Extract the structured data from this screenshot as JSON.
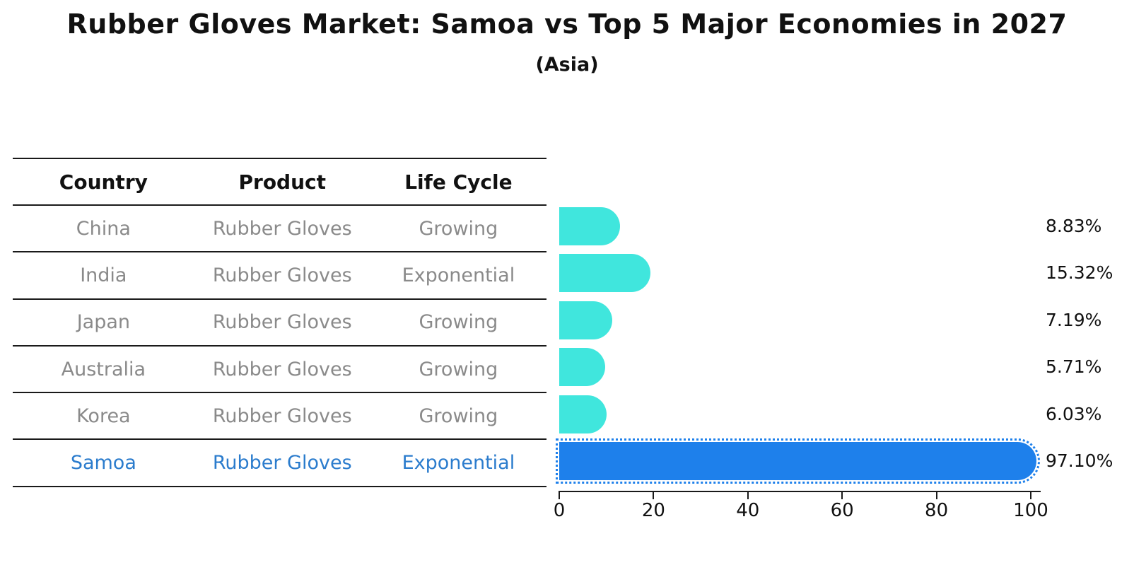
{
  "title": "Rubber Gloves Market: Samoa vs Top 5 Major Economies in 2027",
  "subtitle": "(Asia)",
  "table": {
    "headers": [
      "Country",
      "Product",
      "Life Cycle"
    ],
    "rows": [
      {
        "country": "China",
        "product": "Rubber Gloves",
        "life_cycle": "Growing",
        "highlight": false
      },
      {
        "country": "India",
        "product": "Rubber Gloves",
        "life_cycle": "Exponential",
        "highlight": false
      },
      {
        "country": "Japan",
        "product": "Rubber Gloves",
        "life_cycle": "Growing",
        "highlight": false
      },
      {
        "country": "Australia",
        "product": "Rubber Gloves",
        "life_cycle": "Growing",
        "highlight": false
      },
      {
        "country": "Korea",
        "product": "Rubber Gloves",
        "life_cycle": "Growing",
        "highlight": false
      },
      {
        "country": "Samoa",
        "product": "Rubber Gloves",
        "life_cycle": "Exponential",
        "highlight": true
      }
    ]
  },
  "chart_data": {
    "type": "bar",
    "orientation": "horizontal",
    "title": "Rubber Gloves Market: Samoa vs Top 5 Major Economies in 2027",
    "subtitle": "(Asia)",
    "categories": [
      "China",
      "India",
      "Japan",
      "Australia",
      "Korea",
      "Samoa"
    ],
    "values": [
      8.83,
      15.32,
      7.19,
      5.71,
      6.03,
      97.1
    ],
    "value_labels": [
      "8.83%",
      "15.32%",
      "7.19%",
      "5.71%",
      "6.03%",
      "97.10%"
    ],
    "highlight_index": 5,
    "x_ticks": [
      0,
      20,
      40,
      60,
      80,
      100
    ],
    "xlim": [
      0,
      100
    ],
    "grid": false,
    "legend": "none",
    "colors": {
      "default_bar": "#40e6dd",
      "highlight_bar": "#1e80eb",
      "highlight_text": "#2b7ccd",
      "row_text": "#8a8a8a",
      "axis_text": "#111111"
    }
  }
}
